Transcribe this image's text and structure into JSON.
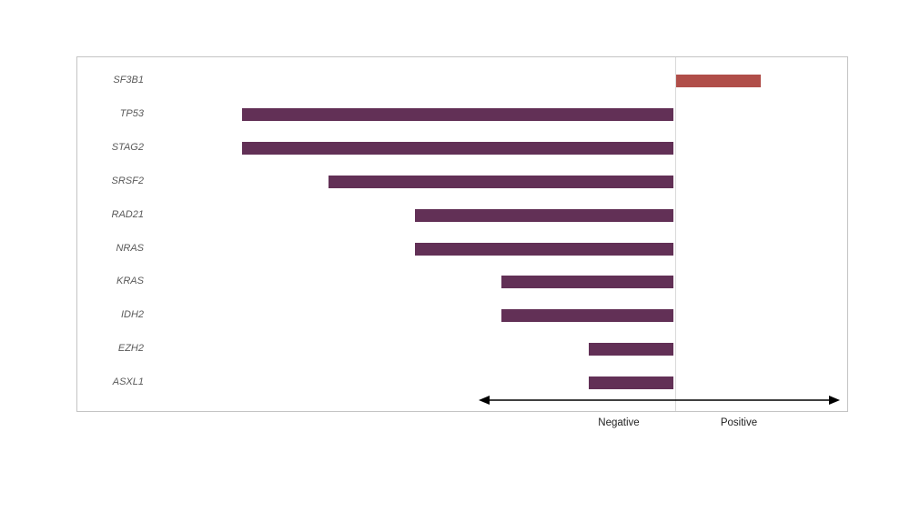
{
  "chart_data": {
    "type": "bar",
    "orientation": "horizontal",
    "title": "",
    "xlabel": "",
    "ylabel": "",
    "grid": false,
    "legend": false,
    "categories": [
      "SF3B1",
      "TP53",
      "STAG2",
      "SRSF2",
      "RAD21",
      "NRAS",
      "KRAS",
      "IDH2",
      "EZH2",
      "ASXL1"
    ],
    "values": [
      1,
      -5,
      -5,
      -4,
      -3,
      -3,
      -2,
      -2,
      -1,
      -1
    ],
    "xlim": [
      -6.9,
      2.0
    ],
    "baseline_value": 0,
    "axis_labels": {
      "negative": "Negative",
      "positive": "Positive"
    },
    "colors": {
      "positive_bar": "#b04e49",
      "negative_bar": "#623056",
      "baseline": "#d9d9d9",
      "frame_border": "#c4c4c4",
      "category_label_text": "#595959",
      "axis_word_text": "#1f1f1f",
      "arrow": "#000000"
    }
  }
}
